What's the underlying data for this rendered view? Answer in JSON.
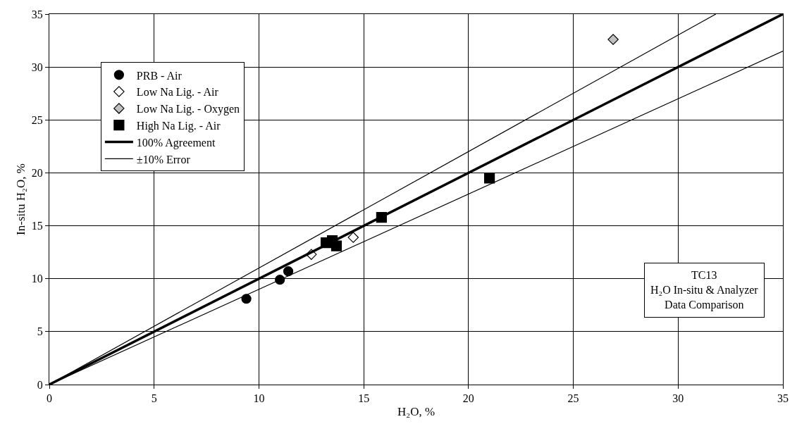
{
  "chart_data": {
    "type": "scatter",
    "xlabel": "H₂O, %",
    "ylabel": "In-situ H₂O, %",
    "xlim": [
      0,
      35
    ],
    "ylim": [
      0,
      35
    ],
    "xticks": [
      0,
      5,
      10,
      15,
      20,
      25,
      30,
      35
    ],
    "yticks": [
      0,
      5,
      10,
      15,
      20,
      25,
      30,
      35
    ],
    "grid": true,
    "legend": "top left",
    "annotations": [
      "TC13\nH₂O In-situ & Analyzer\nData Comparison"
    ],
    "series": [
      {
        "name": "PRB - Air",
        "color": "#000000",
        "marker": "circle",
        "x": [
          9.4,
          11.0,
          11.4
        ],
        "values": [
          8.1,
          9.9,
          10.7
        ]
      },
      {
        "name": "Low Na Lig. - Air",
        "color": "#ffffff",
        "marker": "diamond",
        "x": [
          12.5,
          14.5
        ],
        "values": [
          12.3,
          13.9
        ]
      },
      {
        "name": "Low Na Lig. - Oxygen",
        "color": "#c0c0c0",
        "marker": "diamond",
        "x": [
          26.9
        ],
        "values": [
          32.6
        ]
      },
      {
        "name": "High Na Lig. - Air",
        "color": "#000000",
        "marker": "square",
        "x": [
          13.2,
          13.5,
          13.7,
          15.85,
          21.0
        ],
        "values": [
          13.4,
          13.6,
          13.1,
          15.8,
          19.5
        ]
      },
      {
        "name": "100% Agreement",
        "type": "line",
        "color": "#000000",
        "marker": "none",
        "x": [
          0,
          35
        ],
        "values": [
          0,
          35
        ]
      },
      {
        "name": "±10% Error",
        "type": "line",
        "color": "#000000",
        "marker": "none",
        "x": [
          0,
          31.8
        ],
        "values": [
          0,
          35
        ]
      },
      {
        "type": "line",
        "color": "#000000",
        "marker": "none",
        "x": [
          0,
          35
        ],
        "values": [
          0,
          31.5
        ]
      }
    ]
  }
}
